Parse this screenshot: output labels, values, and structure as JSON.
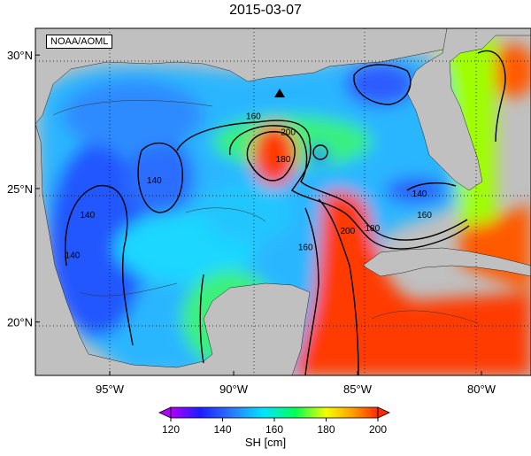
{
  "title": "2015-03-07",
  "credit": "NOAA/AOML",
  "map": {
    "lon_range": [
      -98,
      -78
    ],
    "lat_range": [
      18,
      31
    ],
    "lon_ticks": [
      {
        "value": -95,
        "label": "95°W"
      },
      {
        "value": -90,
        "label": "90°W"
      },
      {
        "value": -85,
        "label": "85°W"
      },
      {
        "value": -80,
        "label": "80°W"
      }
    ],
    "lat_ticks": [
      {
        "value": 20,
        "label": "20°N"
      },
      {
        "value": 25,
        "label": "25°N"
      },
      {
        "value": 30,
        "label": "30°N"
      }
    ],
    "marker": {
      "lon": -88.6,
      "lat": 28.7,
      "shape": "triangle"
    },
    "contour_labels": [
      {
        "text": "160",
        "lon": -89.2,
        "lat": 27.6
      },
      {
        "text": "180",
        "lon": -88.0,
        "lat": 26.0
      },
      {
        "text": "200",
        "lon": -87.8,
        "lat": 27.0
      },
      {
        "text": "140",
        "lon": -93.2,
        "lat": 25.2
      },
      {
        "text": "140",
        "lon": -95.9,
        "lat": 23.9
      },
      {
        "text": "140",
        "lon": -96.5,
        "lat": 22.4
      },
      {
        "text": "160",
        "lon": -87.1,
        "lat": 22.7
      },
      {
        "text": "200",
        "lon": -85.4,
        "lat": 23.3
      },
      {
        "text": "180",
        "lon": -84.4,
        "lat": 23.4
      },
      {
        "text": "160",
        "lon": -82.3,
        "lat": 23.9
      },
      {
        "text": "140",
        "lon": -82.5,
        "lat": 24.7
      }
    ]
  },
  "colorbar": {
    "title": "SH [cm]",
    "min": 120,
    "max": 200,
    "ticks": [
      120,
      140,
      160,
      180,
      200
    ],
    "colors": [
      "#b000ff",
      "#1c1cff",
      "#2a7dff",
      "#00e5ff",
      "#00ff55",
      "#f5ff00",
      "#ff9d00",
      "#ff2a00"
    ]
  },
  "colors": {
    "land": "#c0c0c0",
    "sea_cold": "#2a62ff",
    "sea_mid": "#20c8ff",
    "loop_current": "#ff3300",
    "contour": "#000000"
  }
}
